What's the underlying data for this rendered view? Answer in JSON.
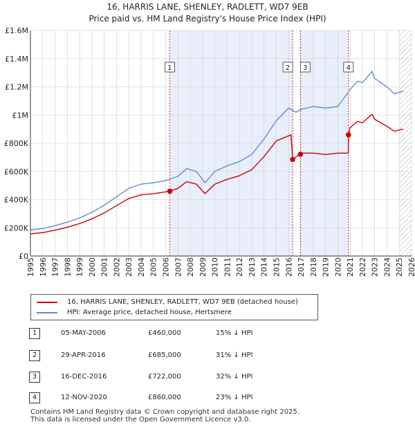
{
  "title_line1": "16, HARRIS LANE, SHENLEY, RADLETT, WD7 9EB",
  "title_line2": "Price paid vs. HM Land Registry's House Price Index (HPI)",
  "colors": {
    "price_line": "#cc0000",
    "hpi_line": "#5b8fd0",
    "shade": "#e8eefa",
    "grid": "#cccccc",
    "axis": "#333333"
  },
  "legend": {
    "price_label": "16, HARRIS LANE, SHENLEY, RADLETT, WD7 9EB (detached house)",
    "hpi_label": "HPI: Average price, detached house, Hertsmere"
  },
  "sales": [
    {
      "num": "1",
      "date": "05-MAY-2006",
      "price": "£460,000",
      "hpi": "15% ↓ HPI"
    },
    {
      "num": "2",
      "date": "29-APR-2016",
      "price": "£685,000",
      "hpi": "31% ↓ HPI"
    },
    {
      "num": "3",
      "date": "16-DEC-2016",
      "price": "£722,000",
      "hpi": "32% ↓ HPI"
    },
    {
      "num": "4",
      "date": "12-NOV-2020",
      "price": "£860,000",
      "hpi": "23% ↓ HPI"
    }
  ],
  "footer": {
    "line1": "Contains HM Land Registry data © Crown copyright and database right 2025.",
    "line2": "This data is licensed under the Open Government Licence v3.0."
  },
  "chart_data": {
    "type": "line",
    "title": "16, HARRIS LANE, SHENLEY, RADLETT, WD7 9EB",
    "subtitle": "Price paid vs. HM Land Registry's House Price Index (HPI)",
    "xlabel": "",
    "ylabel": "",
    "xlim": [
      1995,
      2026
    ],
    "ylim": [
      0,
      1600000
    ],
    "x_ticks": [
      1995,
      1996,
      1997,
      1998,
      1999,
      2000,
      2001,
      2002,
      2003,
      2004,
      2005,
      2006,
      2007,
      2008,
      2009,
      2010,
      2011,
      2012,
      2013,
      2014,
      2015,
      2016,
      2017,
      2018,
      2019,
      2020,
      2021,
      2022,
      2023,
      2024,
      2025,
      2026
    ],
    "y_ticks": [
      0,
      200000,
      400000,
      600000,
      800000,
      1000000,
      1200000,
      1400000,
      1600000
    ],
    "y_tick_labels": [
      "£0",
      "£200K",
      "£400K",
      "£600K",
      "£800K",
      "£1M",
      "£1.2M",
      "£1.4M",
      "£1.6M"
    ],
    "shaded_ranges": [
      [
        2006.34,
        2016.33
      ],
      [
        2016.96,
        2020.87
      ]
    ],
    "hatched_from": 2025.0,
    "grid": true,
    "legend_position": "below",
    "series": [
      {
        "name": "HPI: Average price, detached house, Hertsmere",
        "x": [
          1995,
          1996,
          1997,
          1998,
          1999,
          2000,
          2001,
          2002,
          2003,
          2004,
          2005,
          2006,
          2007,
          2007.7,
          2008.5,
          2009.2,
          2010,
          2011,
          2012,
          2013,
          2014,
          2015,
          2016,
          2016.6,
          2017,
          2018,
          2019,
          2020,
          2021,
          2021.6,
          2022,
          2022.8,
          2023,
          2024,
          2024.6,
          2025.3
        ],
        "y": [
          185000,
          195000,
          215000,
          240000,
          270000,
          310000,
          360000,
          420000,
          480000,
          510000,
          520000,
          535000,
          565000,
          620000,
          600000,
          520000,
          600000,
          640000,
          670000,
          720000,
          830000,
          960000,
          1050000,
          1020000,
          1040000,
          1060000,
          1050000,
          1060000,
          1180000,
          1240000,
          1230000,
          1310000,
          1260000,
          1200000,
          1150000,
          1170000
        ]
      },
      {
        "name": "16, HARRIS LANE, SHENLEY, RADLETT, WD7 9EB (detached house)",
        "x": [
          1995,
          1996,
          1997,
          1998,
          1999,
          2000,
          2001,
          2002,
          2003,
          2004,
          2005,
          2006.34,
          2007,
          2007.7,
          2008.5,
          2009.2,
          2010,
          2011,
          2012,
          2013,
          2014,
          2015,
          2016.2,
          2016.33,
          2016.6,
          2016.96,
          2017,
          2018,
          2019,
          2020,
          2020.86,
          2020.87,
          2021,
          2021.6,
          2022,
          2022.8,
          2023,
          2024,
          2024.6,
          2025.3
        ],
        "y": [
          157000,
          166000,
          183000,
          204000,
          230000,
          264000,
          306000,
          357000,
          408000,
          434000,
          442000,
          460000,
          480000,
          527000,
          510000,
          442000,
          510000,
          544000,
          570000,
          612000,
          706000,
          816000,
          860000,
          685000,
          703000,
          722000,
          730000,
          730000,
          720000,
          730000,
          730000,
          860000,
          910000,
          955000,
          945000,
          1005000,
          970000,
          920000,
          885000,
          900000
        ]
      }
    ],
    "sale_markers": [
      {
        "label": "1",
        "x": 2006.34,
        "y": 460000
      },
      {
        "label": "2",
        "x": 2016.33,
        "y": 685000
      },
      {
        "label": "3",
        "x": 2016.96,
        "y": 722000
      },
      {
        "label": "4",
        "x": 2020.87,
        "y": 860000
      }
    ]
  }
}
